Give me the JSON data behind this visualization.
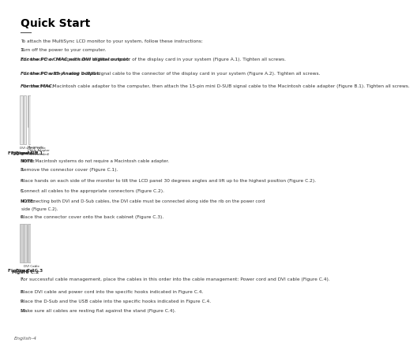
{
  "title": "Quick Start",
  "bg_color": "#ffffff",
  "text_color": "#333333",
  "title_color": "#000000",
  "footer": "English-4",
  "intro": "To attach the MultiSync LCD monitor to your system, follow these instructions:",
  "items": [
    {
      "num": "1.",
      "text": "Turn off the power to your computer."
    },
    {
      "num": "2.",
      "bold_prefix": "For the PC or MAC with DVI digital output:",
      "text": " Connect the DVI signal cable to the connector of the display card in your system (Figure A.1). Tighten all screws."
    },
    {
      "num": "",
      "bold_prefix": "For the PC with Analog output:",
      "text": " Connect the 15-pin mini D-SUB signal cable to the connector of the display card in your system (Figure A.2). Tighten all screws."
    },
    {
      "num": "",
      "bold_prefix": "For the MAC:",
      "text": " Connect the Macintosh cable adapter to the computer, then attach the 15-pin mini D-SUB signal cable to the Macintosh cable adapter (Figure B.1). Tighten all screws."
    }
  ],
  "note1": {
    "label": "NOTE:",
    "text": "Some Macintosh systems do not require a Macintosh cable adapter."
  },
  "items2": [
    {
      "num": "3.",
      "text": "Remove the connector cover (Figure C.1)."
    },
    {
      "num": "4.",
      "text": "Place hands on each side of the monitor to tilt the LCD panel 30 degrees angles and lift up to the highest position (Figure C.2)."
    },
    {
      "num": "5.",
      "text": "Connect all cables to the appropriate connectors (Figure C.2)."
    }
  ],
  "note2": {
    "label": "NOTE:",
    "text": "If connecting both DVI and D-Sub cables, the DVI cable must be connected along side the rib on the power cord side (Figure C.2)."
  },
  "item6": {
    "num": "6.",
    "text": "Place the connector cover onto the back cabinet (Figure C.3)."
  },
  "items3": [
    {
      "num": "7.",
      "text": "For successful cable management, place the cables in this order into the cable management: Power cord and DVI cable (Figure C.4)."
    },
    {
      "num": "8.",
      "text": "Place DVI cable and power cord into the specific hooks indicated in Figure C.4."
    },
    {
      "num": "9.",
      "text": "Place the D-Sub and the USB cable into the specific hooks indicated in Figure C.4."
    },
    {
      "num": "10.",
      "text": "Make sure all cables are resting flat against the stand (Figure C.4)."
    }
  ]
}
